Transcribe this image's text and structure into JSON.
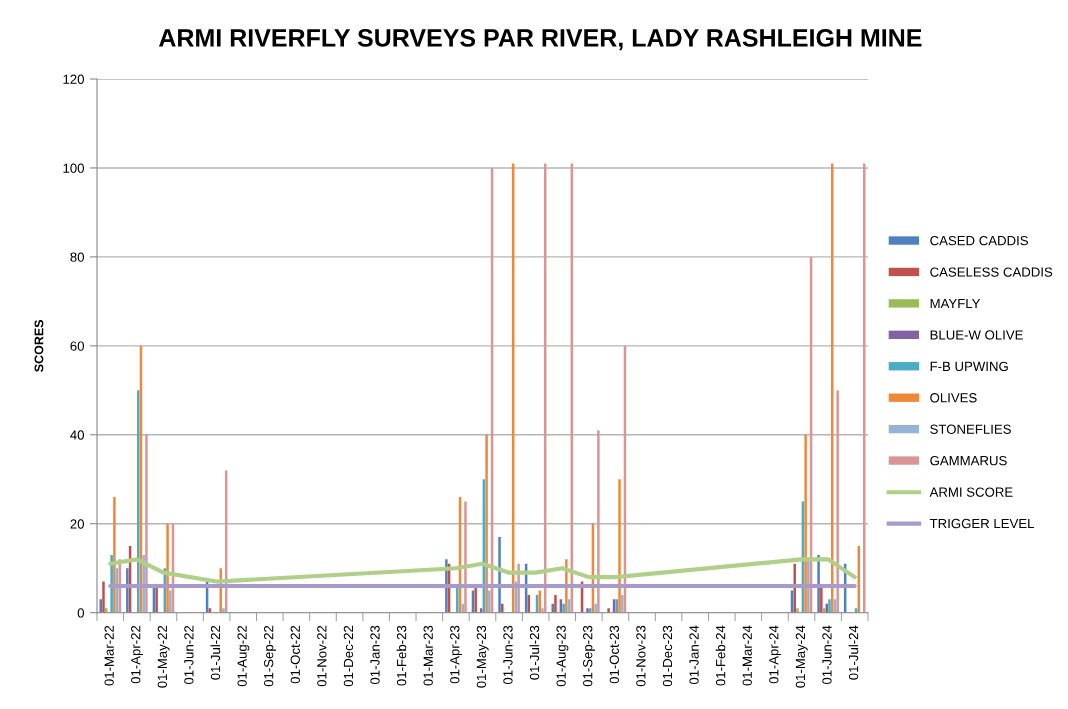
{
  "chart_data": {
    "type": "bar",
    "title": "ARMI RIVERFLY SURVEYS PAR RIVER, LADY RASHLEIGH MINE",
    "ylabel": "SCORES",
    "categories": [
      "01-Mar-22",
      "01-Apr-22",
      "01-May-22",
      "01-Jun-22",
      "01-Jul-22",
      "01-Aug-22",
      "01-Sep-22",
      "01-Oct-22",
      "01-Nov-22",
      "01-Dec-22",
      "01-Jan-23",
      "01-Feb-23",
      "01-Mar-23",
      "01-Apr-23",
      "01-May-23",
      "01-Jun-23",
      "01-Jul-23",
      "01-Aug-23",
      "01-Sep-23",
      "01-Oct-23",
      "01-Nov-23",
      "01-Dec-23",
      "01-Jan-24",
      "01-Feb-24",
      "01-Mar-24",
      "01-Apr-24",
      "01-May-24",
      "01-Jun-24",
      "01-Jul-24"
    ],
    "series": [
      {
        "name": "CASED CADDIS",
        "color": "#4f81bd",
        "x": [
          "01-Mar-22",
          "01-Apr-22",
          "01-May-22",
          "01-Jul-22",
          "01-Apr-23",
          "01-May-23",
          "01-Jun-23",
          "01-Jul-23",
          "01-Aug-23",
          "01-Sep-23",
          "01-Oct-23",
          "01-May-24",
          "01-Jun-24",
          "01-Jul-24"
        ],
        "values": [
          3,
          10,
          6,
          7,
          12,
          5,
          17,
          11,
          2,
          null,
          null,
          5,
          13,
          11
        ]
      },
      {
        "name": "CASELESS CADDIS",
        "color": "#c0504d",
        "x": [
          "01-Mar-22",
          "01-Apr-22",
          "01-May-22",
          "01-Jul-22",
          "01-Apr-23",
          "01-May-23",
          "01-Jun-23",
          "01-Jul-23",
          "01-Aug-23",
          "01-Sep-23",
          "01-Oct-23",
          "01-May-24",
          "01-Jun-24",
          "01-Jul-24"
        ],
        "values": [
          7,
          15,
          6,
          1,
          11,
          6,
          2,
          4,
          4,
          7,
          1,
          11,
          6,
          null
        ]
      },
      {
        "name": "MAYFLY",
        "color": "#9bbb59",
        "x": [
          "01-Mar-22",
          "01-Apr-22",
          "01-May-22",
          "01-Jul-22",
          "01-Apr-23",
          "01-May-23",
          "01-Jun-23",
          "01-Jul-23",
          "01-Aug-23",
          "01-Sep-23",
          "01-Oct-23",
          "01-May-24",
          "01-Jun-24",
          "01-Jul-24"
        ],
        "values": [
          1,
          null,
          null,
          null,
          null,
          null,
          null,
          null,
          null,
          null,
          null,
          1,
          1,
          null
        ]
      },
      {
        "name": "BLUE-W OLIVE",
        "color": "#8064a2",
        "x": [
          "01-Mar-22",
          "01-Apr-22",
          "01-May-22",
          "01-Jul-22",
          "01-Apr-23",
          "01-May-23",
          "01-Jun-23",
          "01-Jul-23",
          "01-Aug-23",
          "01-Sep-23",
          "01-Oct-23",
          "01-May-24",
          "01-Jun-24",
          "01-Jul-24"
        ],
        "values": [
          null,
          null,
          null,
          null,
          null,
          1,
          null,
          null,
          3,
          1,
          3,
          null,
          2,
          null
        ]
      },
      {
        "name": "F-B UPWING",
        "color": "#4bacc6",
        "x": [
          "01-Mar-22",
          "01-Apr-22",
          "01-May-22",
          "01-Jul-22",
          "01-Apr-23",
          "01-May-23",
          "01-Jun-23",
          "01-Jul-23",
          "01-Aug-23",
          "01-Sep-23",
          "01-Oct-23",
          "01-May-24",
          "01-Jun-24",
          "01-Jul-24"
        ],
        "values": [
          13,
          50,
          10,
          null,
          6,
          30,
          null,
          4,
          2,
          1,
          3,
          25,
          3,
          1
        ]
      },
      {
        "name": "OLIVES",
        "color": "#f0883a",
        "x": [
          "01-Mar-22",
          "01-Apr-22",
          "01-May-22",
          "01-Jul-22",
          "01-Apr-23",
          "01-May-23",
          "01-Jun-23",
          "01-Jul-23",
          "01-Aug-23",
          "01-Sep-23",
          "01-Oct-23",
          "01-May-24",
          "01-Jun-24",
          "01-Jul-24"
        ],
        "values": [
          26,
          60,
          20,
          10,
          26,
          40,
          101,
          5,
          12,
          20,
          30,
          40,
          101,
          15
        ]
      },
      {
        "name": "STONEFLIES",
        "color": "#95b3d7",
        "x": [
          "01-Mar-22",
          "01-Apr-22",
          "01-May-22",
          "01-Jul-22",
          "01-Apr-23",
          "01-May-23",
          "01-Jun-23",
          "01-Jul-23",
          "01-Aug-23",
          "01-Sep-23",
          "01-Oct-23",
          "01-May-24",
          "01-Jun-24",
          "01-Jul-24"
        ],
        "values": [
          10,
          13,
          5,
          1,
          2,
          5,
          7,
          1,
          3,
          2,
          4,
          12,
          3,
          null
        ]
      },
      {
        "name": "GAMMARUS",
        "color": "#d99694",
        "x": [
          "01-Mar-22",
          "01-Apr-22",
          "01-May-22",
          "01-Jul-22",
          "01-Apr-23",
          "01-May-23",
          "01-Jun-23",
          "01-Jul-23",
          "01-Aug-23",
          "01-Sep-23",
          "01-Oct-23",
          "01-May-24",
          "01-Jun-24",
          "01-Jul-24"
        ],
        "values": [
          12,
          40,
          20,
          32,
          25,
          100,
          11,
          101,
          101,
          41,
          60,
          80,
          50,
          101
        ]
      },
      {
        "name": "ARMI SCORE",
        "type": "line",
        "color": "#b0cf89",
        "x": [
          "01-Mar-22",
          "01-Apr-22",
          "01-May-22",
          "01-Jul-22",
          "01-Apr-23",
          "01-May-23",
          "01-Jun-23",
          "01-Jul-23",
          "01-Aug-23",
          "01-Sep-23",
          "01-Oct-23",
          "01-May-24",
          "01-Jun-24",
          "01-Jul-24"
        ],
        "values": [
          11,
          12,
          9,
          7,
          10,
          11,
          9,
          9,
          10,
          8,
          8,
          12,
          12,
          8
        ]
      },
      {
        "name": "TRIGGER LEVEL",
        "type": "line",
        "color": "#a89bc9",
        "x": [
          "01-Mar-22",
          "01-Apr-22",
          "01-May-22",
          "01-Jul-22",
          "01-Apr-23",
          "01-May-23",
          "01-Jun-23",
          "01-Jul-23",
          "01-Aug-23",
          "01-Sep-23",
          "01-Oct-23",
          "01-May-24",
          "01-Jun-24",
          "01-Jul-24"
        ],
        "values": [
          6,
          6,
          6,
          6,
          6,
          6,
          6,
          6,
          6,
          6,
          6,
          6,
          6,
          6
        ]
      }
    ],
    "ylim": [
      0,
      120
    ],
    "yticks": [
      0,
      20,
      40,
      60,
      80,
      100,
      120
    ],
    "grid": "y",
    "legend": "right"
  }
}
